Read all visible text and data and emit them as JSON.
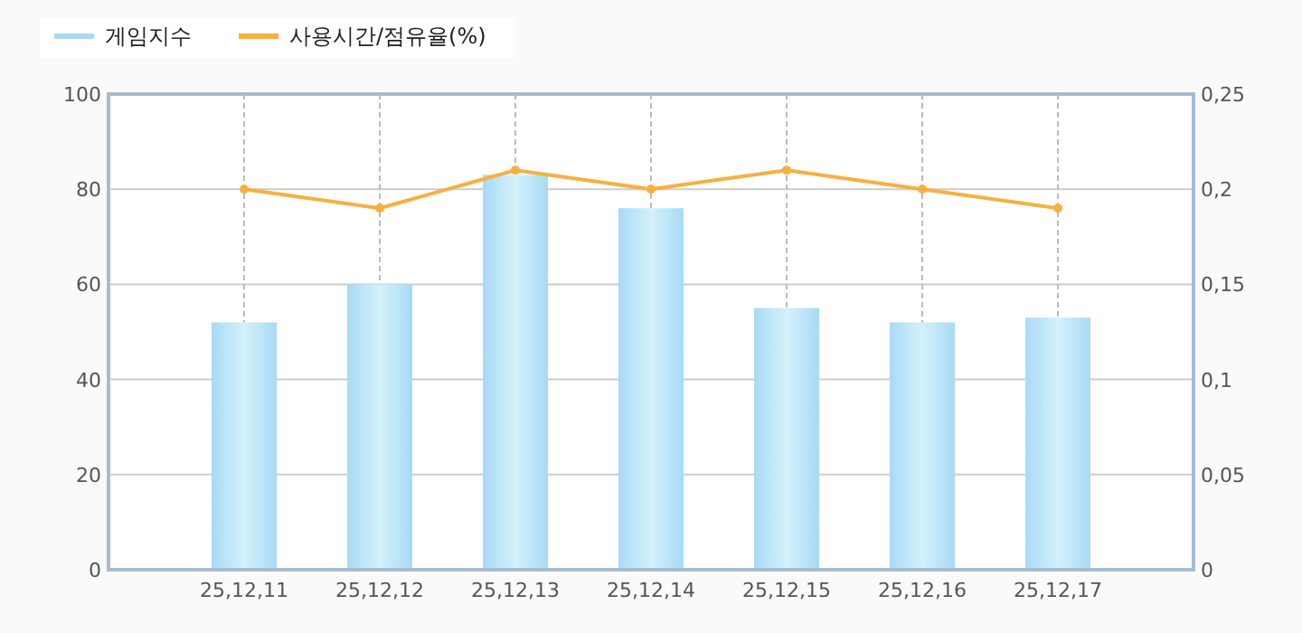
{
  "chart_data": {
    "type": "bar",
    "categories": [
      null,
      "25,12,11",
      "25,12,12",
      "25,12,13",
      "25,12,14",
      "25,12,15",
      "25,12,16",
      "25,12,17",
      null
    ],
    "series": [
      {
        "name": "게임지수",
        "color": "#a8daf5",
        "values": [
          null,
          52,
          60,
          83,
          76,
          55,
          52,
          53,
          null
        ]
      },
      {
        "name": "사용시간/점유율(%)",
        "type": "line",
        "axis": "y2",
        "color": "#f7b040",
        "marker": "circle",
        "values": [
          null,
          0.2,
          0.19,
          0.21,
          0.2,
          0.21,
          0.2,
          0.19,
          null
        ]
      }
    ],
    "ylim": [
      0,
      100
    ],
    "yticks": [
      0,
      20,
      40,
      60,
      80,
      100
    ],
    "y2lim": [
      0,
      0.25
    ],
    "y2ticks": [
      {
        "value": 0,
        "label": "0"
      },
      {
        "value": 0.05,
        "label": "0,05"
      },
      {
        "value": 0.1,
        "label": "0,1"
      },
      {
        "value": 0.15,
        "label": "0,15"
      },
      {
        "value": 0.2,
        "label": "0,2"
      },
      {
        "value": 0.25,
        "label": "0,25"
      }
    ],
    "grid": true,
    "legend": "top left"
  }
}
